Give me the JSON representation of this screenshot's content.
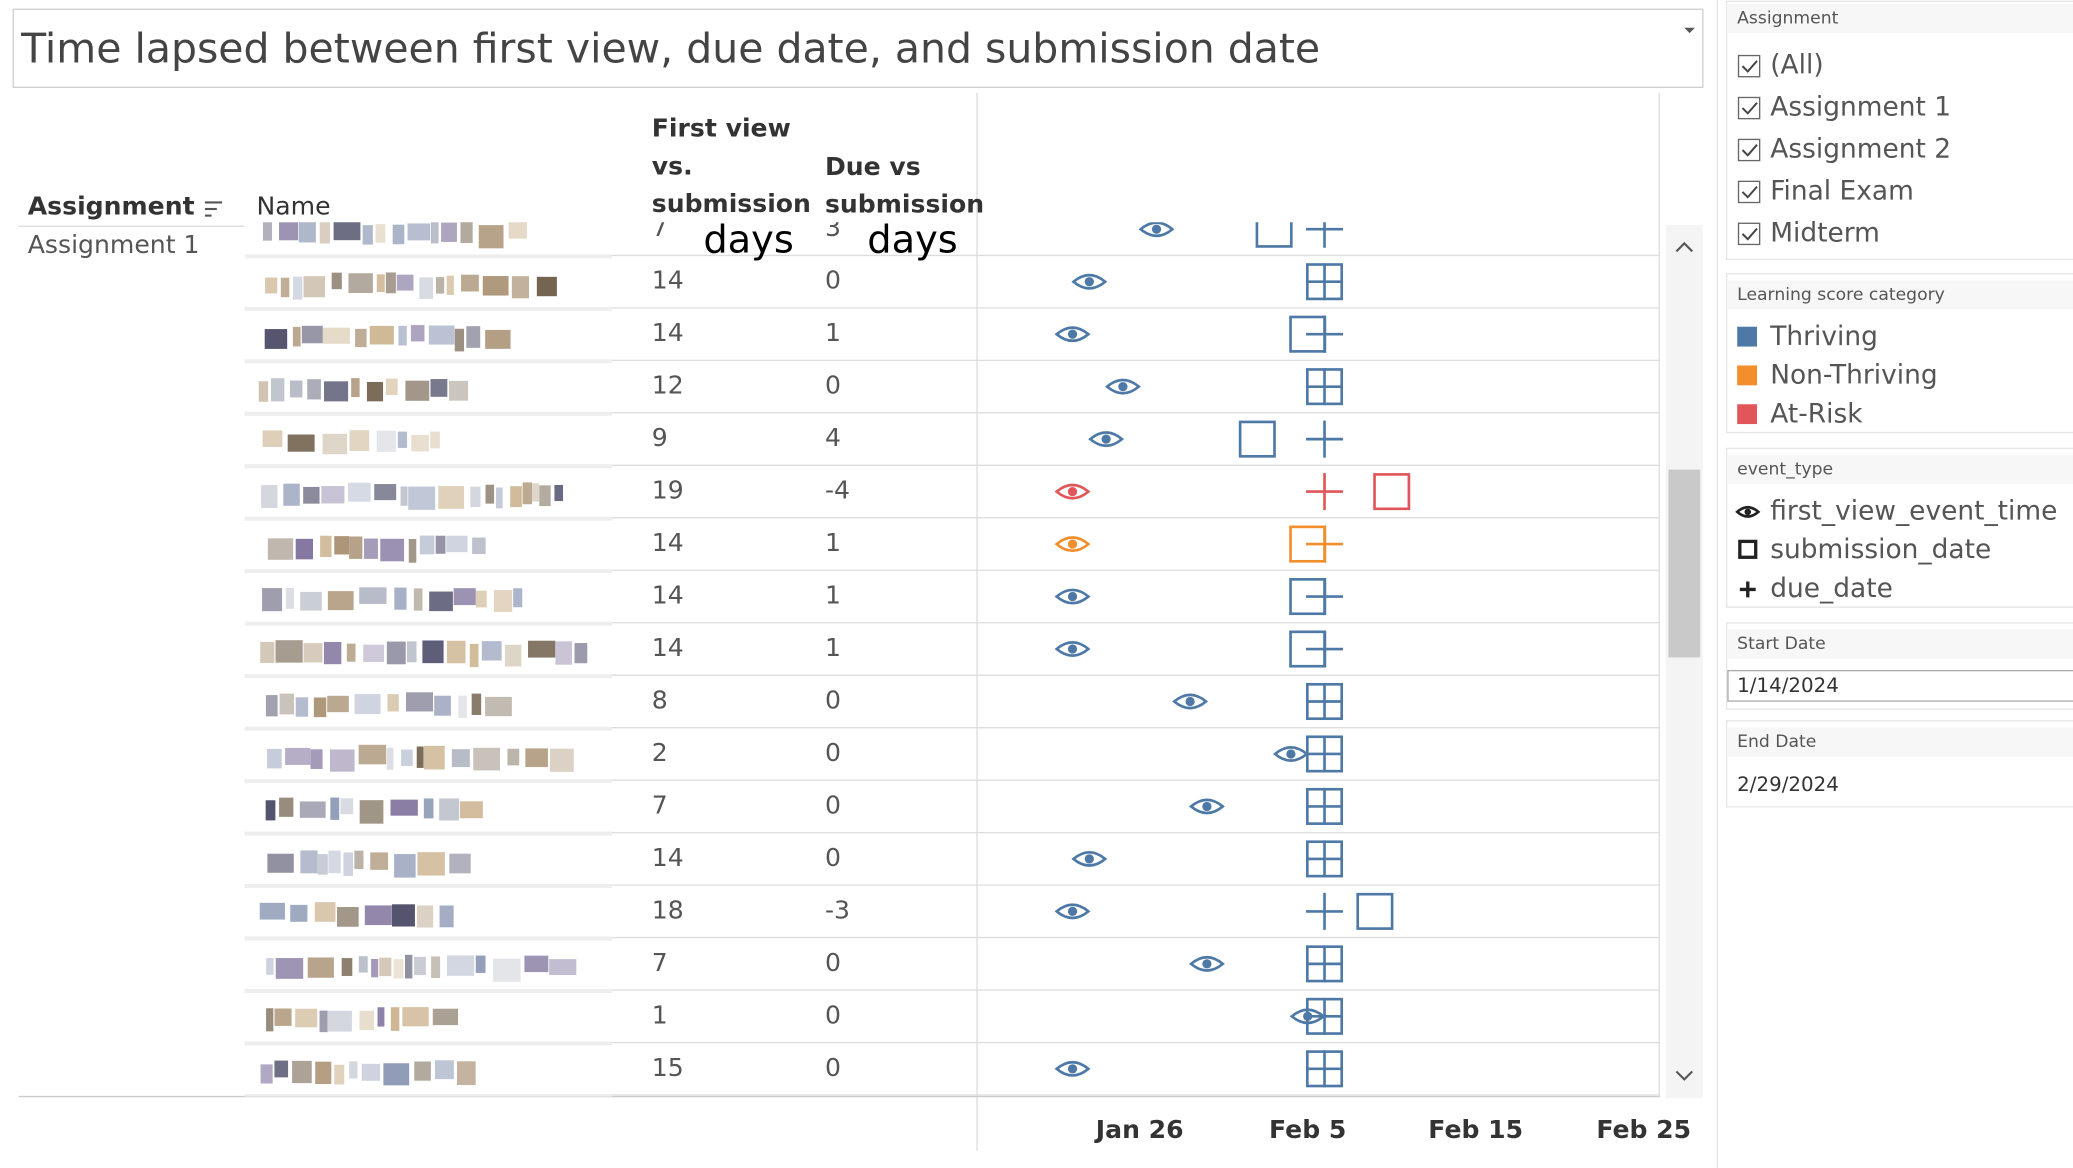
{
  "title": "Time lapsed between first view, due date, and submission date",
  "table": {
    "headers": {
      "assignment": "Assignment",
      "name": "Name",
      "first_view_vs_submission": [
        "First view",
        "vs.",
        "submission"
      ],
      "due_vs_submission": [
        "Due vs",
        "submission"
      ],
      "units": [
        "days",
        "days"
      ]
    },
    "group": "Assignment 1",
    "rows": [
      {
        "category": "Thriving",
        "first_view_vs_submission": 7,
        "due_vs_submission": 3,
        "first_view": "Jan 27",
        "submission": "Feb 3",
        "due": "Feb 6"
      },
      {
        "category": "Thriving",
        "first_view_vs_submission": 14,
        "due_vs_submission": 0,
        "first_view": "Jan 23",
        "submission": "Feb 6",
        "due": "Feb 6"
      },
      {
        "category": "Thriving",
        "first_view_vs_submission": 14,
        "due_vs_submission": 1,
        "first_view": "Jan 22",
        "submission": "Feb 5",
        "due": "Feb 6"
      },
      {
        "category": "Thriving",
        "first_view_vs_submission": 12,
        "due_vs_submission": 0,
        "first_view": "Jan 25",
        "submission": "Feb 6",
        "due": "Feb 6"
      },
      {
        "category": "Thriving",
        "first_view_vs_submission": 9,
        "due_vs_submission": 4,
        "first_view": "Jan 24",
        "submission": "Feb 2",
        "due": "Feb 6"
      },
      {
        "category": "At-Risk",
        "first_view_vs_submission": 19,
        "due_vs_submission": -4,
        "first_view": "Jan 22",
        "submission": "Feb 10",
        "due": "Feb 6"
      },
      {
        "category": "Non-Thriving",
        "first_view_vs_submission": 14,
        "due_vs_submission": 1,
        "first_view": "Jan 22",
        "submission": "Feb 5",
        "due": "Feb 6"
      },
      {
        "category": "Thriving",
        "first_view_vs_submission": 14,
        "due_vs_submission": 1,
        "first_view": "Jan 22",
        "submission": "Feb 5",
        "due": "Feb 6"
      },
      {
        "category": "Thriving",
        "first_view_vs_submission": 14,
        "due_vs_submission": 1,
        "first_view": "Jan 22",
        "submission": "Feb 5",
        "due": "Feb 6"
      },
      {
        "category": "Thriving",
        "first_view_vs_submission": 8,
        "due_vs_submission": 0,
        "first_view": "Jan 29",
        "submission": "Feb 6",
        "due": "Feb 6"
      },
      {
        "category": "Thriving",
        "first_view_vs_submission": 2,
        "due_vs_submission": 0,
        "first_view": "Feb 4",
        "submission": "Feb 6",
        "due": "Feb 6"
      },
      {
        "category": "Thriving",
        "first_view_vs_submission": 7,
        "due_vs_submission": 0,
        "first_view": "Jan 30",
        "submission": "Feb 6",
        "due": "Feb 6"
      },
      {
        "category": "Thriving",
        "first_view_vs_submission": 14,
        "due_vs_submission": 0,
        "first_view": "Jan 23",
        "submission": "Feb 6",
        "due": "Feb 6"
      },
      {
        "category": "Thriving",
        "first_view_vs_submission": 18,
        "due_vs_submission": -3,
        "first_view": "Jan 22",
        "submission": "Feb 9",
        "due": "Feb 6"
      },
      {
        "category": "Thriving",
        "first_view_vs_submission": 7,
        "due_vs_submission": 0,
        "first_view": "Jan 30",
        "submission": "Feb 6",
        "due": "Feb 6"
      },
      {
        "category": "Thriving",
        "first_view_vs_submission": 1,
        "due_vs_submission": 0,
        "first_view": "Feb 5",
        "submission": "Feb 6",
        "due": "Feb 6"
      },
      {
        "category": "Thriving",
        "first_view_vs_submission": 15,
        "due_vs_submission": 0,
        "first_view": "Jan 22",
        "submission": "Feb 6",
        "due": "Feb 6"
      }
    ]
  },
  "axis": {
    "xlim": [
      "Jan 16",
      "Feb 26"
    ],
    "xticks": [
      "Jan 26",
      "Feb 5",
      "Feb 15",
      "Feb 25"
    ]
  },
  "filters": {
    "assignment": {
      "title": "Assignment",
      "options": [
        "(All)",
        "Assignment 1",
        "Assignment 2",
        "Final Exam",
        "Midterm"
      ]
    },
    "learning_score": {
      "title": "Learning score category",
      "items": [
        {
          "name": "Thriving",
          "color": "#4e79a7"
        },
        {
          "name": "Non-Thriving",
          "color": "#f28e2b"
        },
        {
          "name": "At-Risk",
          "color": "#e15759"
        }
      ]
    },
    "event_type": {
      "title": "event_type",
      "items": [
        "first_view_event_time",
        "submission_date",
        "due_date"
      ]
    },
    "start_date": {
      "title": "Start Date",
      "value": "1/14/2024"
    },
    "end_date": {
      "title": "End Date",
      "value": "2/29/2024"
    }
  }
}
